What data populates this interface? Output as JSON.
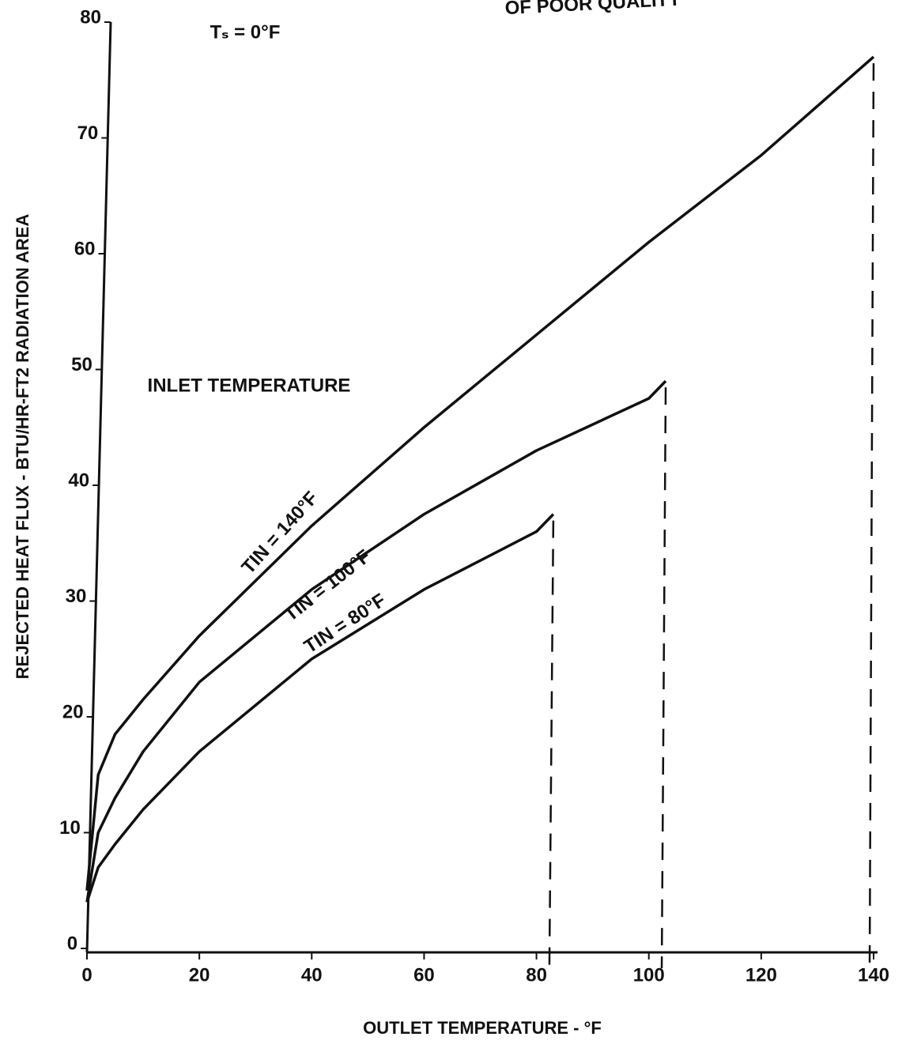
{
  "chart_data": {
    "type": "line",
    "title": "OF POOR QUALITY",
    "annotations": [
      "Tₛ = 0°F",
      "INLET TEMPERATURE"
    ],
    "xlabel": "OUTLET TEMPERATURE - °F",
    "ylabel": "REJECTED HEAT FLUX - BTU/HR-FT2 RADIATION AREA",
    "xlim": [
      0,
      140
    ],
    "ylim": [
      0,
      80
    ],
    "xticks": [
      0,
      20,
      40,
      60,
      80,
      100,
      120,
      140
    ],
    "yticks": [
      0,
      10,
      20,
      30,
      40,
      50,
      60,
      70,
      80
    ],
    "grid": false,
    "series": [
      {
        "name": "TIN = 140°F",
        "color": "#111111",
        "x": [
          0,
          2,
          5,
          10,
          20,
          40,
          60,
          80,
          100,
          120,
          140
        ],
        "values": [
          5,
          15,
          18.5,
          21.5,
          27,
          36.5,
          45,
          53,
          61,
          68.5,
          77
        ]
      },
      {
        "name": "TIN = 100°F",
        "color": "#111111",
        "x": [
          0,
          2,
          5,
          10,
          20,
          40,
          60,
          80,
          100,
          103
        ],
        "values": [
          4,
          10,
          13,
          17,
          23,
          31,
          37.5,
          43,
          47.5,
          49
        ]
      },
      {
        "name": "TIN = 80°F",
        "color": "#111111",
        "x": [
          0,
          2,
          5,
          10,
          20,
          40,
          60,
          80,
          83
        ],
        "values": [
          4,
          7,
          9,
          12,
          17,
          25,
          31,
          36,
          37.5
        ]
      }
    ]
  }
}
